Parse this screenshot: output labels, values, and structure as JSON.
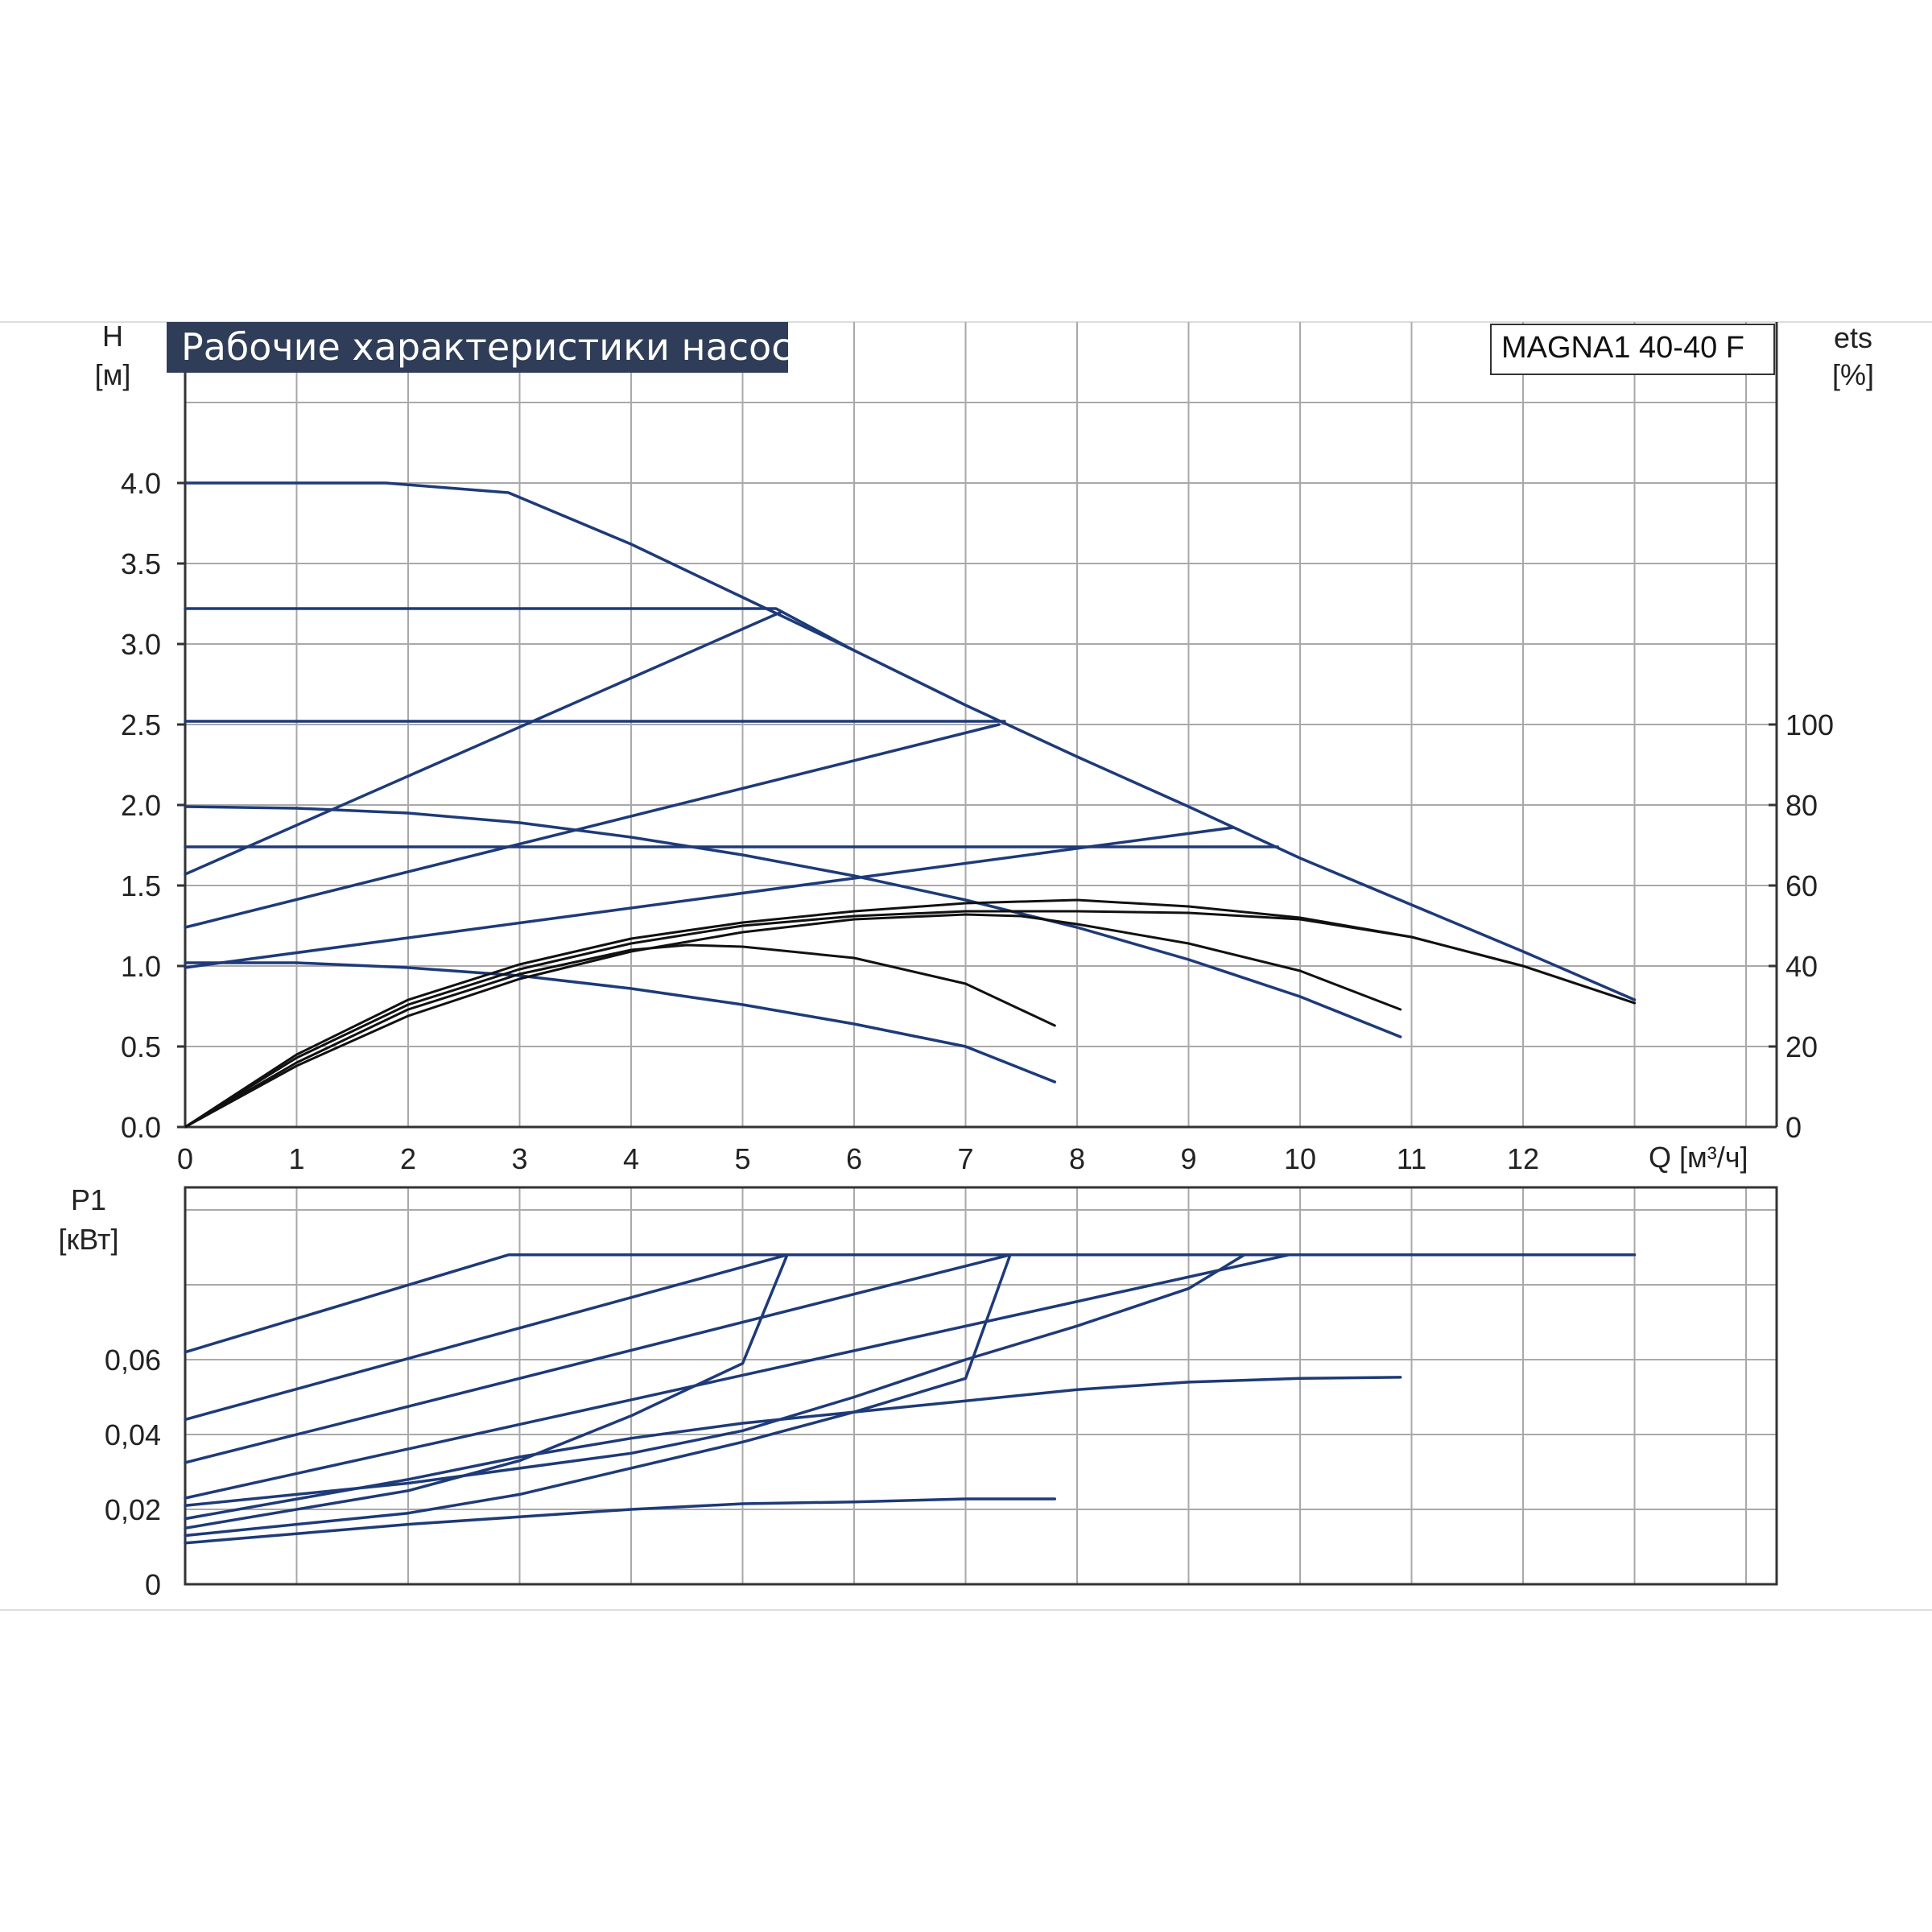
{
  "title": "Рабочие характеристики насоса",
  "model": "MAGNA1 40-40 F",
  "colors": {
    "pump_curves": "#1e3a78",
    "efficiency_curves": "#111111",
    "grid": "#a9a9a9",
    "title_bg": "#2f3d58",
    "border_lines": "#dddddd"
  },
  "chart_data": [
    {
      "type": "line",
      "name": "head",
      "ylabel": "H",
      "yunit": "[м]",
      "xlabel": "Q [м³/ч]",
      "xlim": [
        0,
        13
      ],
      "ylim": [
        0,
        4.5
      ],
      "x_ticks": [
        "0",
        "1",
        "2",
        "3",
        "4",
        "5",
        "6",
        "7",
        "8",
        "9",
        "10",
        "11",
        "12"
      ],
      "y_ticks": [
        "0.0",
        "0.5",
        "1.0",
        "1.5",
        "2.0",
        "2.5",
        "3.0",
        "3.5",
        "4.0"
      ],
      "y2label": "ets",
      "y2unit": "[%]",
      "y2lim": [
        0,
        100
      ],
      "y2_ticks": [
        "0",
        "20",
        "40",
        "60",
        "80",
        "100"
      ],
      "grid": true,
      "series": [
        {
          "kind": "pump",
          "points": [
            [
              0,
              4.0
            ],
            [
              1.8,
              4.0
            ],
            [
              2.9,
              3.94
            ],
            [
              4.0,
              3.62
            ],
            [
              5.0,
              3.29
            ],
            [
              6.0,
              2.96
            ],
            [
              7.0,
              2.62
            ],
            [
              8.0,
              2.3
            ],
            [
              9.0,
              1.99
            ],
            [
              10.0,
              1.67
            ],
            [
              11.0,
              1.38
            ],
            [
              12.0,
              1.09
            ],
            [
              13.0,
              0.79
            ]
          ]
        },
        {
          "kind": "pump",
          "points": [
            [
              0,
              3.22
            ],
            [
              5.3,
              3.22
            ],
            [
              6.0,
              2.96
            ]
          ]
        },
        {
          "kind": "pump",
          "points": [
            [
              0,
              1.57
            ],
            [
              5.35,
              3.2
            ]
          ]
        },
        {
          "kind": "pump",
          "points": [
            [
              0,
              2.52
            ],
            [
              7.35,
              2.52
            ]
          ]
        },
        {
          "kind": "pump",
          "points": [
            [
              0,
              1.24
            ],
            [
              7.3,
              2.5
            ]
          ]
        },
        {
          "kind": "pump",
          "points": [
            [
              0,
              1.74
            ],
            [
              9.8,
              1.74
            ]
          ]
        },
        {
          "kind": "pump",
          "points": [
            [
              0,
              0.99
            ],
            [
              9.4,
              1.86
            ]
          ]
        },
        {
          "kind": "pump",
          "points": [
            [
              0,
              1.99
            ],
            [
              1,
              1.98
            ],
            [
              2,
              1.95
            ],
            [
              3,
              1.89
            ],
            [
              4,
              1.8
            ],
            [
              5,
              1.69
            ],
            [
              6,
              1.56
            ],
            [
              7,
              1.41
            ],
            [
              8,
              1.24
            ],
            [
              9,
              1.04
            ],
            [
              10,
              0.81
            ],
            [
              10.9,
              0.56
            ]
          ]
        },
        {
          "kind": "pump",
          "points": [
            [
              0,
              1.02
            ],
            [
              1,
              1.02
            ],
            [
              2,
              0.99
            ],
            [
              3,
              0.94
            ],
            [
              4,
              0.86
            ],
            [
              5,
              0.76
            ],
            [
              6,
              0.64
            ],
            [
              7,
              0.5
            ],
            [
              7.8,
              0.28
            ]
          ]
        },
        {
          "kind": "efficiency",
          "points": [
            [
              0,
              0
            ],
            [
              1,
              0.45
            ],
            [
              2,
              0.79
            ],
            [
              3,
              1.01
            ],
            [
              4,
              1.17
            ],
            [
              5,
              1.27
            ],
            [
              6,
              1.34
            ],
            [
              7,
              1.39
            ],
            [
              8,
              1.41
            ],
            [
              9,
              1.37
            ],
            [
              10,
              1.3
            ],
            [
              11,
              1.18
            ],
            [
              12,
              1.0
            ],
            [
              13,
              0.77
            ]
          ]
        },
        {
          "kind": "efficiency",
          "points": [
            [
              0,
              0
            ],
            [
              1,
              0.43
            ],
            [
              2,
              0.76
            ],
            [
              3,
              0.98
            ],
            [
              4,
              1.14
            ],
            [
              5,
              1.25
            ],
            [
              6,
              1.31
            ],
            [
              7,
              1.34
            ],
            [
              8,
              1.34
            ],
            [
              9,
              1.33
            ],
            [
              10,
              1.29
            ],
            [
              11,
              1.18
            ],
            [
              12,
              1.0
            ],
            [
              13,
              0.77
            ]
          ]
        },
        {
          "kind": "efficiency",
          "points": [
            [
              0,
              0
            ],
            [
              1,
              0.38
            ],
            [
              2,
              0.69
            ],
            [
              3,
              0.92
            ],
            [
              4,
              1.09
            ],
            [
              5,
              1.21
            ],
            [
              6,
              1.29
            ],
            [
              7,
              1.32
            ],
            [
              7.5,
              1.31
            ],
            [
              8,
              1.26
            ],
            [
              9,
              1.14
            ],
            [
              10,
              0.97
            ],
            [
              10.9,
              0.73
            ]
          ]
        },
        {
          "kind": "efficiency",
          "points": [
            [
              0,
              0
            ],
            [
              1,
              0.4
            ],
            [
              2,
              0.73
            ],
            [
              3,
              0.95
            ],
            [
              4,
              1.1
            ],
            [
              4.5,
              1.13
            ],
            [
              5,
              1.12
            ],
            [
              6,
              1.05
            ],
            [
              7,
              0.89
            ],
            [
              7.8,
              0.63
            ]
          ]
        }
      ]
    },
    {
      "type": "line",
      "name": "power",
      "ylabel": "P1",
      "yunit": "[кВт]",
      "xlim": [
        0,
        13
      ],
      "ylim": [
        0,
        0.105
      ],
      "y_ticks": [
        "0",
        "0,02",
        "0,04",
        "0,06"
      ],
      "grid": true,
      "series": [
        {
          "points": [
            [
              0,
              0.062
            ],
            [
              2.9,
              0.088
            ],
            [
              13,
              0.088
            ]
          ]
        },
        {
          "points": [
            [
              0,
              0.044
            ],
            [
              5.4,
              0.088
            ]
          ]
        },
        {
          "points": [
            [
              0,
              0.0325
            ],
            [
              7.4,
              0.088
            ]
          ]
        },
        {
          "points": [
            [
              0,
              0.023
            ],
            [
              9.9,
              0.088
            ]
          ]
        },
        {
          "points": [
            [
              0,
              0.021
            ],
            [
              2,
              0.027
            ],
            [
              4,
              0.035
            ],
            [
              5,
              0.041
            ],
            [
              6,
              0.05
            ],
            [
              7,
              0.06
            ],
            [
              8,
              0.069
            ],
            [
              9,
              0.079
            ],
            [
              9.5,
              0.088
            ]
          ]
        },
        {
          "points": [
            [
              0,
              0.015
            ],
            [
              2,
              0.025
            ],
            [
              3,
              0.033
            ],
            [
              4,
              0.045
            ],
            [
              5,
              0.059
            ],
            [
              5.4,
              0.088
            ]
          ]
        },
        {
          "points": [
            [
              0,
              0.0175
            ],
            [
              2,
              0.028
            ],
            [
              3,
              0.034
            ],
            [
              4,
              0.039
            ],
            [
              5,
              0.043
            ],
            [
              6,
              0.046
            ],
            [
              7,
              0.049
            ],
            [
              8,
              0.052
            ],
            [
              9,
              0.054
            ],
            [
              10,
              0.055
            ],
            [
              10.9,
              0.0553
            ]
          ]
        },
        {
          "points": [
            [
              0,
              0.013
            ],
            [
              2,
              0.019
            ],
            [
              3,
              0.024
            ],
            [
              4,
              0.031
            ],
            [
              5,
              0.038
            ],
            [
              6,
              0.046
            ],
            [
              7,
              0.055
            ],
            [
              7.4,
              0.088
            ]
          ]
        },
        {
          "points": [
            [
              0,
              0.011
            ],
            [
              2,
              0.016
            ],
            [
              3,
              0.018
            ],
            [
              4,
              0.02
            ],
            [
              5,
              0.0215
            ],
            [
              6,
              0.022
            ],
            [
              7,
              0.0228
            ],
            [
              7.8,
              0.0228
            ]
          ]
        }
      ]
    }
  ]
}
